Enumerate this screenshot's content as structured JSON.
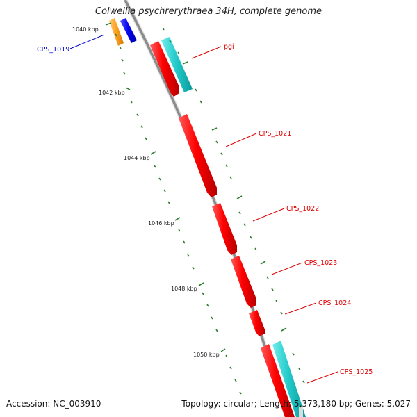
{
  "title": "Colwellia psychrerythraea 34H, complete genome",
  "footer": {
    "accession": "Accession: NC_003910",
    "topology": "Topology: circular; Length: 5,373,180 bp; Genes: 5,027"
  },
  "scale": {
    "tick_labels": [
      "1040 kbp",
      "1042 kbp",
      "1044 kbp",
      "1046 kbp",
      "1048 kbp",
      "1050 kbp"
    ]
  },
  "gene_labels": [
    {
      "text": "CPS_1019",
      "color": "#0000cc"
    },
    {
      "text": "pgi",
      "color": "#dd0000"
    },
    {
      "text": "CPS_1021",
      "color": "#dd0000"
    },
    {
      "text": "CPS_1022",
      "color": "#dd0000"
    },
    {
      "text": "CPS_1023",
      "color": "#dd0000"
    },
    {
      "text": "CPS_1024",
      "color": "#dd0000"
    },
    {
      "text": "CPS_1025",
      "color": "#dd0000"
    }
  ],
  "colors": {
    "backbone": "#8c8c8c",
    "cds_forward": "#ff0000",
    "cds_reverse": "#0000ee",
    "gene_forward": "#21c8c8",
    "gene_reverse": "#ffa020",
    "tick": "#2f7f2f"
  }
}
